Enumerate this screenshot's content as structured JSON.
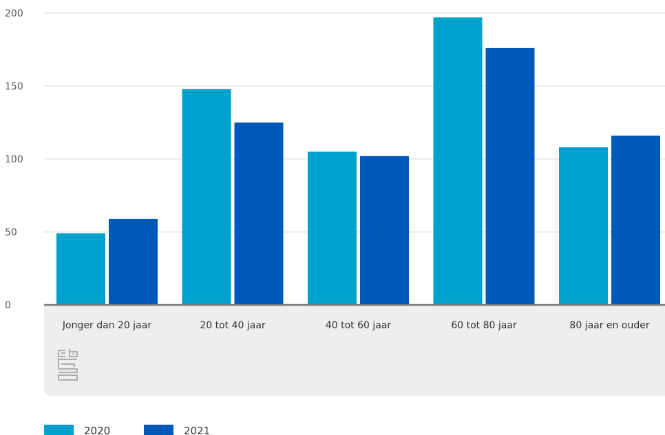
{
  "chart_data": {
    "type": "bar",
    "categories": [
      "Jonger dan 20 jaar",
      "20 tot 40 jaar",
      "40 tot 60 jaar",
      "60 tot 80 jaar",
      "80 jaar en ouder"
    ],
    "series": [
      {
        "name": "2020",
        "values": [
          49,
          148,
          105,
          197,
          108
        ],
        "color": "#00a1cd"
      },
      {
        "name": "2021",
        "values": [
          59,
          125,
          102,
          176,
          116
        ],
        "color": "#0058b8"
      }
    ],
    "y_ticks": [
      "0",
      "50",
      "100",
      "150",
      "200"
    ],
    "ylim": [
      0,
      200
    ],
    "grid": true,
    "legend_position": "bottom-left",
    "title": "",
    "xlabel": "",
    "ylabel": ""
  },
  "logo": {
    "icon": "cbs-logo-icon",
    "text": "cbs"
  }
}
